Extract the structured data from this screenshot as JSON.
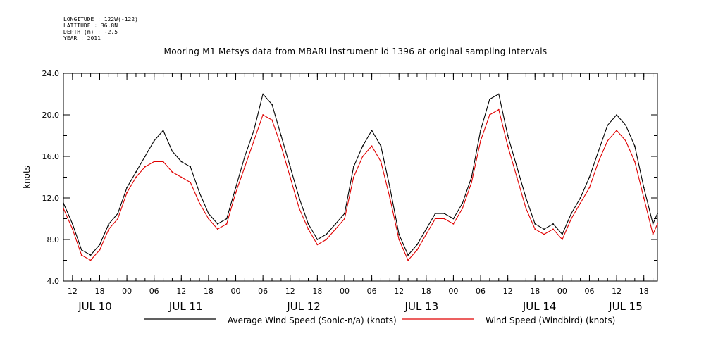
{
  "header": {
    "longitude": "LONGITUDE : 122W(-122)",
    "latitude": "LATITUDE : 36.8N",
    "depth": "DEPTH (m) : -2.5",
    "year": "YEAR : 2011"
  },
  "colors": {
    "sonic": "#000000",
    "windbird": "#e00000"
  },
  "chart_data": {
    "type": "line",
    "title": "Mooring M1 Metsys data from MBARI instrument id 1396 at original sampling intervals",
    "ylabel": "knots",
    "ylim": [
      4.0,
      24.0
    ],
    "yticks": [
      "4.0",
      "8.0",
      "12.0",
      "16.0",
      "20.0",
      "24.0"
    ],
    "xlim_hours": [
      10,
      141
    ],
    "x_unit": "hours from 2011-07-10 00:00",
    "hour_ticks": [
      {
        "h": 12,
        "label": "12"
      },
      {
        "h": 18,
        "label": "18"
      },
      {
        "h": 24,
        "label": "00"
      },
      {
        "h": 30,
        "label": "06"
      },
      {
        "h": 36,
        "label": "12"
      },
      {
        "h": 42,
        "label": "18"
      },
      {
        "h": 48,
        "label": "00"
      },
      {
        "h": 54,
        "label": "06"
      },
      {
        "h": 60,
        "label": "12"
      },
      {
        "h": 66,
        "label": "18"
      },
      {
        "h": 72,
        "label": "00"
      },
      {
        "h": 78,
        "label": "06"
      },
      {
        "h": 84,
        "label": "12"
      },
      {
        "h": 90,
        "label": "18"
      },
      {
        "h": 96,
        "label": "00"
      },
      {
        "h": 102,
        "label": "06"
      },
      {
        "h": 108,
        "label": "12"
      },
      {
        "h": 114,
        "label": "18"
      },
      {
        "h": 120,
        "label": "00"
      },
      {
        "h": 126,
        "label": "06"
      },
      {
        "h": 132,
        "label": "12"
      },
      {
        "h": 138,
        "label": "18"
      }
    ],
    "day_labels": [
      {
        "h": 17,
        "label": "JUL 10"
      },
      {
        "h": 37,
        "label": "JUL 11"
      },
      {
        "h": 63,
        "label": "JUL 12"
      },
      {
        "h": 89,
        "label": "JUL 13"
      },
      {
        "h": 115,
        "label": "JUL 14"
      },
      {
        "h": 134,
        "label": "JUL 15"
      }
    ],
    "series": [
      {
        "name": "Average Wind Speed (Sonic-n/a) (knots)",
        "color": "#000000",
        "x": [
          10,
          12,
          14,
          16,
          18,
          20,
          22,
          24,
          26,
          28,
          30,
          32,
          34,
          36,
          38,
          40,
          42,
          44,
          46,
          48,
          50,
          52,
          54,
          56,
          58,
          60,
          62,
          64,
          66,
          68,
          70,
          72,
          74,
          76,
          78,
          80,
          82,
          84,
          86,
          88,
          90,
          92,
          94,
          96,
          98,
          100,
          102,
          104,
          106,
          108,
          110,
          112,
          114,
          116,
          118,
          120,
          122,
          124,
          126,
          128,
          130,
          132,
          134,
          136,
          138,
          140,
          141
        ],
        "values": [
          11.5,
          9.5,
          7.0,
          6.5,
          7.5,
          9.5,
          10.5,
          13.0,
          14.5,
          16.0,
          17.5,
          18.5,
          16.5,
          15.5,
          15.0,
          12.5,
          10.5,
          9.5,
          10.0,
          13.0,
          16.0,
          18.5,
          22.0,
          21.0,
          18.0,
          15.0,
          12.0,
          9.5,
          8.0,
          8.5,
          9.5,
          10.5,
          15.0,
          17.0,
          18.5,
          17.0,
          13.0,
          8.5,
          6.5,
          7.5,
          9.0,
          10.5,
          10.5,
          10.0,
          11.5,
          14.0,
          18.5,
          21.5,
          22.0,
          18.0,
          15.0,
          12.0,
          9.5,
          9.0,
          9.5,
          8.5,
          10.5,
          12.0,
          14.0,
          16.5,
          19.0,
          20.0,
          19.0,
          17.0,
          13.0,
          9.5,
          10.5
        ]
      },
      {
        "name": "Wind Speed (Windbird) (knots)",
        "color": "#e00000",
        "x": [
          10,
          12,
          14,
          16,
          18,
          20,
          22,
          24,
          26,
          28,
          30,
          32,
          34,
          36,
          38,
          40,
          42,
          44,
          46,
          48,
          50,
          52,
          54,
          56,
          58,
          60,
          62,
          64,
          66,
          68,
          70,
          72,
          74,
          76,
          78,
          80,
          82,
          84,
          86,
          88,
          90,
          92,
          94,
          96,
          98,
          100,
          102,
          104,
          106,
          108,
          110,
          112,
          114,
          116,
          118,
          120,
          122,
          124,
          126,
          128,
          130,
          132,
          134,
          136,
          138,
          140,
          141
        ],
        "values": [
          11.0,
          9.0,
          6.5,
          6.0,
          7.0,
          9.0,
          10.0,
          12.5,
          14.0,
          15.0,
          15.5,
          15.5,
          14.5,
          14.0,
          13.5,
          11.5,
          10.0,
          9.0,
          9.5,
          12.5,
          15.0,
          17.5,
          20.0,
          19.5,
          17.0,
          14.0,
          11.0,
          9.0,
          7.5,
          8.0,
          9.0,
          10.0,
          14.0,
          16.0,
          17.0,
          15.5,
          12.0,
          8.0,
          6.0,
          7.0,
          8.5,
          10.0,
          10.0,
          9.5,
          11.0,
          13.5,
          17.5,
          20.0,
          20.5,
          17.0,
          14.0,
          11.0,
          9.0,
          8.5,
          9.0,
          8.0,
          10.0,
          11.5,
          13.0,
          15.5,
          17.5,
          18.5,
          17.5,
          15.5,
          12.0,
          8.5,
          9.5
        ]
      }
    ],
    "legend": {
      "placement": "bottom"
    }
  }
}
